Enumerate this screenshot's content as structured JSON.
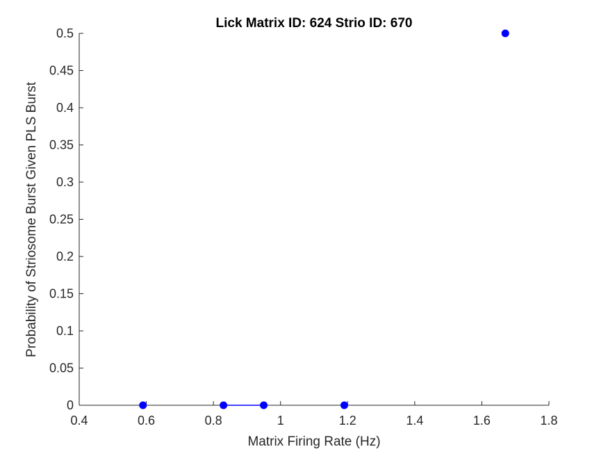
{
  "chart_data": {
    "type": "scatter",
    "title": "Lick Matrix ID: 624 Strio ID: 670",
    "xlabel": "Matrix Firing Rate (Hz)",
    "ylabel": "Probability of Striosome Burst Given PLS Burst",
    "xlim": [
      0.4,
      1.8
    ],
    "ylim": [
      0,
      0.5
    ],
    "xticks": [
      0.4,
      0.6,
      0.8,
      1,
      1.2,
      1.4,
      1.6,
      1.8
    ],
    "xtick_labels": [
      "0.4",
      "0.6",
      "0.8",
      "1",
      "1.2",
      "1.4",
      "1.6",
      "1.8"
    ],
    "yticks": [
      0,
      0.05,
      0.1,
      0.15,
      0.2,
      0.25,
      0.3,
      0.35,
      0.4,
      0.45,
      0.5
    ],
    "ytick_labels": [
      "0",
      "0.05",
      "0.1",
      "0.15",
      "0.2",
      "0.25",
      "0.3",
      "0.35",
      "0.4",
      "0.45",
      "0.5"
    ],
    "grid": false,
    "legend": "none",
    "color": "#0000ff",
    "series": [
      {
        "points": [
          {
            "x": 0.59,
            "y": 0
          },
          {
            "x": 0.83,
            "y": 0
          },
          {
            "x": 0.95,
            "y": 0
          },
          {
            "x": 1.19,
            "y": 0
          },
          {
            "x": 1.67,
            "y": 0.5
          }
        ],
        "connected_segments": [
          [
            0.83,
            0.95
          ]
        ]
      }
    ]
  }
}
